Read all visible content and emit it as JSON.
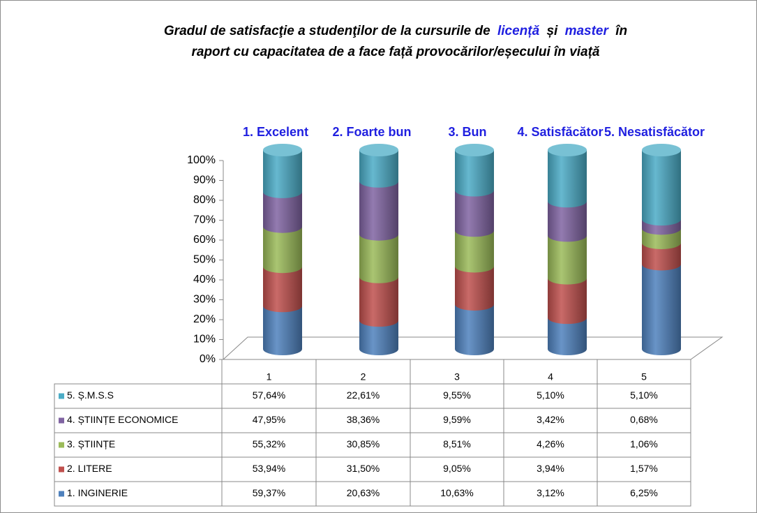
{
  "chart_data": {
    "type": "cylinder-stacked",
    "stack": "percent",
    "title": {
      "line1": [
        "Gradul de satisfacţie a studenţilor de la cursurile de",
        "licență",
        "și",
        "master",
        "în"
      ],
      "line2": "raport cu capacitatea de a face față provocărilor/eșecului în viață"
    },
    "annotations": [
      "1. Excelent",
      "2. Foarte bun",
      "3. Bun",
      "4. Satisfăcător",
      "5. Nesatisfăcător"
    ],
    "categories": [
      "1",
      "2",
      "3",
      "4",
      "5"
    ],
    "ylim": [
      0,
      100
    ],
    "yticks": [
      {
        "value": 0,
        "label": "0%"
      },
      {
        "value": 10,
        "label": "10%"
      },
      {
        "value": 20,
        "label": "20%"
      },
      {
        "value": 30,
        "label": "30%"
      },
      {
        "value": 40,
        "label": "40%"
      },
      {
        "value": 50,
        "label": "50%"
      },
      {
        "value": 60,
        "label": "60%"
      },
      {
        "value": 70,
        "label": "70%"
      },
      {
        "value": 80,
        "label": "80%"
      },
      {
        "value": 90,
        "label": "90%"
      },
      {
        "value": 100,
        "label": "100%"
      }
    ],
    "series": [
      {
        "name": "1. INGINERIE",
        "color": "#4f81bd",
        "values": [
          59.37,
          20.63,
          10.63,
          3.12,
          6.25
        ],
        "value_labels": [
          "59,37%",
          "20,63%",
          "10,63%",
          "3,12%",
          "6,25%"
        ]
      },
      {
        "name": "2. LITERE",
        "color": "#c0504d",
        "values": [
          53.94,
          31.5,
          9.05,
          3.94,
          1.57
        ],
        "value_labels": [
          "53,94%",
          "31,50%",
          "9,05%",
          "3,94%",
          "1,57%"
        ]
      },
      {
        "name": "3. ȘTIINȚE",
        "color": "#9bbb59",
        "values": [
          55.32,
          30.85,
          8.51,
          4.26,
          1.06
        ],
        "value_labels": [
          "55,32%",
          "30,85%",
          "8,51%",
          "4,26%",
          "1,06%"
        ]
      },
      {
        "name": "4. ȘTIINȚE ECONOMICE",
        "color": "#8064a2",
        "values": [
          47.95,
          38.36,
          9.59,
          3.42,
          0.68
        ],
        "value_labels": [
          "47,95%",
          "38,36%",
          "9,59%",
          "3,42%",
          "0,68%"
        ]
      },
      {
        "name": "5. Ș.M.S.S",
        "color": "#4bacc6",
        "values": [
          57.64,
          22.61,
          9.55,
          5.1,
          5.1
        ],
        "value_labels": [
          "57,64%",
          "22,61%",
          "9,55%",
          "5,10%",
          "5,10%"
        ]
      }
    ]
  }
}
